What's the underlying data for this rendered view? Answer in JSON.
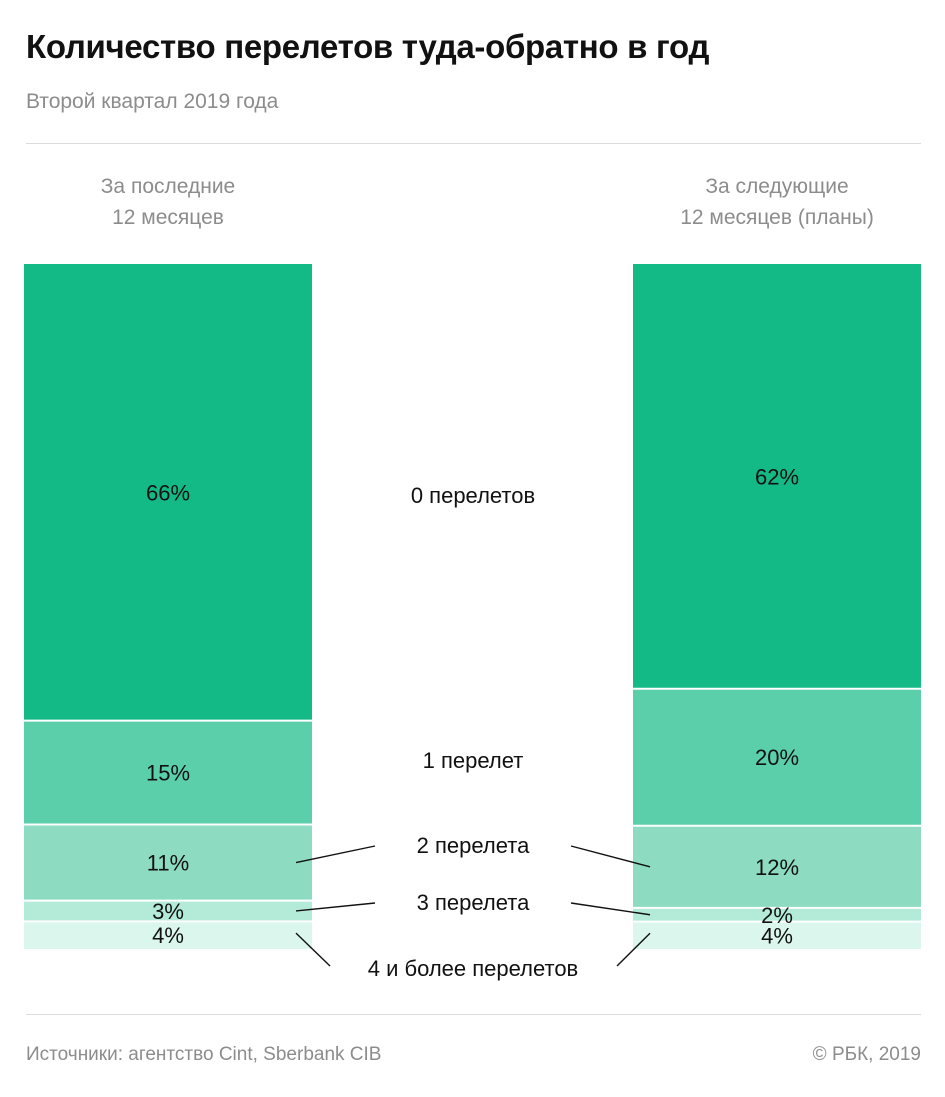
{
  "title": "Количество перелетов туда-обратно в год",
  "subtitle": "Второй квартал 2019 года",
  "footer": {
    "source": "Источники: агентство Cint, Sberbank CIB",
    "copyright": "© РБК, 2019"
  },
  "colors": {
    "0": "#14ba85",
    "1": "#5bcfaa",
    "2": "#8ddcc2",
    "3": "#b3ead8",
    "4": "#daf6ed",
    "text": "#111111",
    "muted": "#8c8c8c"
  },
  "chart_data": {
    "type": "bar",
    "stacked": true,
    "percent": true,
    "categories": [
      "За последние\n12 месяцев",
      "За следующие\n12 месяцев (планы)"
    ],
    "series": [
      {
        "name": "0 перелетов",
        "values": [
          66,
          62
        ]
      },
      {
        "name": "1 перелет",
        "values": [
          15,
          20
        ]
      },
      {
        "name": "2 перелета",
        "values": [
          11,
          12
        ]
      },
      {
        "name": "3 перелета",
        "values": [
          3,
          2
        ]
      },
      {
        "name": "4 и более перелетов",
        "values": [
          4,
          4
        ]
      }
    ],
    "value_labels": [
      [
        "66%",
        "15%",
        "11%",
        "3%",
        "4%"
      ],
      [
        "62%",
        "20%",
        "12%",
        "2%",
        "4%"
      ]
    ]
  }
}
